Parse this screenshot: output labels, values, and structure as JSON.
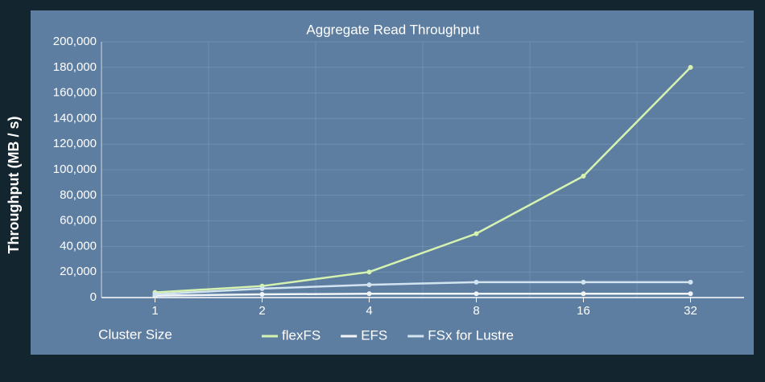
{
  "chart_data": {
    "type": "line",
    "title": "Aggregate Read Throughput",
    "y_label": "Throughput  (MB / s)",
    "x_label": "Cluster Size",
    "categories": [
      "1",
      "2",
      "4",
      "8",
      "16",
      "32"
    ],
    "series": [
      {
        "name": "flexFS",
        "color": "#d6f2b0",
        "values": [
          4000,
          9000,
          20000,
          50000,
          95000,
          180000
        ]
      },
      {
        "name": "EFS",
        "color": "#f2f5f8",
        "values": [
          1500,
          2500,
          3000,
          3000,
          3000,
          3000
        ]
      },
      {
        "name": "FSx for Lustre",
        "color": "#d2e4f0",
        "values": [
          2500,
          7000,
          10000,
          12000,
          12000,
          12000
        ]
      }
    ],
    "ylim": [
      0,
      200000
    ],
    "yticks": [
      0,
      {
        "value": 20000,
        "label": "20,000"
      },
      {
        "value": 40000,
        "label": "40,000"
      },
      {
        "value": 60000,
        "label": "60,000"
      },
      {
        "value": 80000,
        "label": "80,000"
      },
      {
        "value": 100000,
        "label": "100,000"
      },
      {
        "value": 120000,
        "label": "120,000"
      },
      {
        "value": 140000,
        "label": "140,000"
      },
      {
        "value": 160000,
        "label": "160,000"
      },
      {
        "value": 180000,
        "label": "180,000"
      },
      {
        "value": 200000,
        "label": "200,000"
      }
    ],
    "grid": true,
    "legend": "bottom"
  }
}
